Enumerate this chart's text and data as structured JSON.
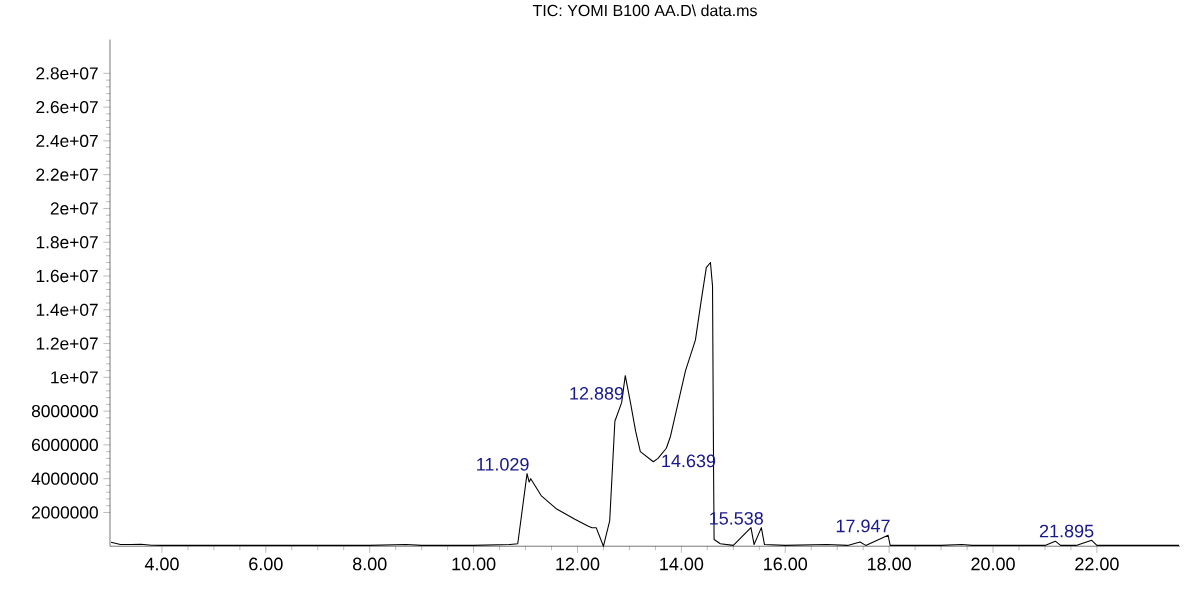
{
  "chart_data": {
    "type": "line",
    "title": "TIC: YOMI B100 AA.D\\ data.ms",
    "x": [
      3.02,
      3.2,
      3.4,
      3.6,
      3.8,
      4.0,
      5.0,
      6.0,
      7.0,
      8.0,
      8.7,
      9.0,
      10.0,
      10.7,
      10.85,
      11.029,
      11.07,
      11.1,
      11.3,
      11.6,
      11.95,
      12.2,
      12.28,
      12.36,
      12.5,
      12.62,
      12.72,
      12.85,
      12.92,
      13.02,
      13.12,
      13.21,
      13.46,
      13.55,
      13.71,
      13.79,
      14.08,
      14.27,
      14.38,
      14.48,
      14.56,
      14.6,
      14.62,
      14.63,
      14.75,
      15.0,
      15.34,
      15.4,
      15.54,
      15.6,
      16.0,
      16.8,
      17.2,
      17.44,
      17.55,
      17.98,
      18.02,
      19.0,
      19.4,
      19.6,
      21.0,
      21.2,
      21.3,
      21.6,
      21.9,
      22.0,
      23.0,
      23.58
    ],
    "values": [
      240000,
      100000,
      100000,
      120000,
      60000,
      50000,
      50000,
      50000,
      50000,
      50000,
      100000,
      50000,
      50000,
      100000,
      150000,
      4300000,
      3800000,
      4000000,
      3000000,
      2200000,
      1600000,
      1200000,
      1100000,
      1100000,
      0,
      1500000,
      7400000,
      8500000,
      10100000,
      8500000,
      6800000,
      5600000,
      5000000,
      5200000,
      5800000,
      6500000,
      10400000,
      12200000,
      14500000,
      16500000,
      16800000,
      15400000,
      4500000,
      400000,
      150000,
      50000,
      1100000,
      100000,
      1100000,
      100000,
      50000,
      100000,
      50000,
      250000,
      50000,
      650000,
      50000,
      50000,
      100000,
      50000,
      50000,
      300000,
      50000,
      50000,
      350000,
      50000,
      50000,
      50000
    ],
    "color": "#000000",
    "marker": "none",
    "line_style": "solid",
    "grid": false,
    "xlim": [
      3.0,
      23.6
    ],
    "ylim": [
      0,
      30000000
    ],
    "xticks": [
      {
        "value": 4,
        "label": "4.00"
      },
      {
        "value": 6,
        "label": "6.00"
      },
      {
        "value": 8,
        "label": "8.00"
      },
      {
        "value": 10,
        "label": "10.00"
      },
      {
        "value": 12,
        "label": "12.00"
      },
      {
        "value": 14,
        "label": "14.00"
      },
      {
        "value": 16,
        "label": "16.00"
      },
      {
        "value": 18,
        "label": "18.00"
      },
      {
        "value": 20,
        "label": "20.00"
      },
      {
        "value": 22,
        "label": "22.00"
      }
    ],
    "yticks": [
      {
        "value": 2000000,
        "label": "2000000"
      },
      {
        "value": 4000000,
        "label": "4000000"
      },
      {
        "value": 6000000,
        "label": "6000000"
      },
      {
        "value": 8000000,
        "label": "8000000"
      },
      {
        "value": 10000000,
        "label": "1e+07"
      },
      {
        "value": 12000000,
        "label": "1.2e+07"
      },
      {
        "value": 14000000,
        "label": "1.4e+07"
      },
      {
        "value": 16000000,
        "label": "1.6e+07"
      },
      {
        "value": 18000000,
        "label": "1.8e+07"
      },
      {
        "value": 20000000,
        "label": "2e+07"
      },
      {
        "value": 22000000,
        "label": "2.2e+07"
      },
      {
        "value": 24000000,
        "label": "2.4e+07"
      },
      {
        "value": 26000000,
        "label": "2.6e+07"
      },
      {
        "value": 28000000,
        "label": "2.8e+07"
      }
    ],
    "annotations": [
      {
        "text": "11.029",
        "x": 11.029,
        "y": 4300000
      },
      {
        "text": "12.889",
        "x": 12.85,
        "y": 8500000
      },
      {
        "text": "14.639",
        "x": 14.62,
        "y": 4500000
      },
      {
        "text": "15.538",
        "x": 15.54,
        "y": 1100000
      },
      {
        "text": "17.947",
        "x": 17.98,
        "y": 650000
      },
      {
        "text": "21.895",
        "x": 21.9,
        "y": 350000
      }
    ]
  }
}
